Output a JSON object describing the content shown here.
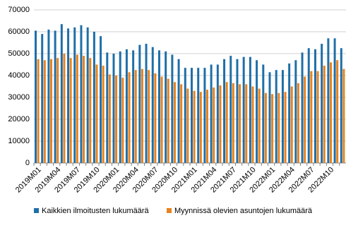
{
  "chart_data": {
    "type": "bar",
    "categories": [
      "2019M01",
      null,
      null,
      "2019M04",
      null,
      null,
      "2019M07",
      null,
      null,
      "2019M10",
      null,
      null,
      "2020M01",
      null,
      null,
      "2020M04",
      null,
      null,
      "2020M07",
      null,
      null,
      "2020M10",
      null,
      null,
      "2021M01",
      null,
      null,
      "2021M04",
      null,
      null,
      "2021M07",
      null,
      null,
      "2021M10",
      null,
      null,
      "2022M01",
      null,
      null,
      "2022M04",
      null,
      null,
      "2022M07",
      null,
      null,
      "2022M10",
      null,
      null
    ],
    "series": [
      {
        "name": "Kaikkien ilmoitusten lukumäärä",
        "color": "#1f6fa8",
        "values": [
          60500,
          59000,
          61000,
          60500,
          63500,
          61500,
          62000,
          63000,
          62000,
          60000,
          58000,
          50500,
          50000,
          51000,
          52000,
          51500,
          54000,
          54500,
          53000,
          51500,
          51000,
          49500,
          47500,
          43500,
          43500,
          43500,
          43500,
          45000,
          45000,
          47500,
          49000,
          47500,
          48500,
          48500,
          47000,
          45000,
          41500,
          42500,
          42500,
          45500,
          47000,
          50500,
          52500,
          52000,
          54500,
          57000,
          57000,
          52500
        ]
      },
      {
        "name": "Myynnissä olevien asuntojen lukumäärä",
        "color": "#e8821e",
        "values": [
          47500,
          47000,
          47500,
          48000,
          50000,
          48000,
          49500,
          49000,
          48000,
          45000,
          44500,
          40500,
          40000,
          39000,
          41500,
          42500,
          43000,
          42500,
          41000,
          39500,
          38500,
          37000,
          36000,
          34000,
          33000,
          32500,
          33500,
          34500,
          35500,
          37000,
          36500,
          36000,
          36000,
          35000,
          34000,
          32000,
          31500,
          32000,
          32500,
          35000,
          36500,
          39500,
          42000,
          42000,
          44500,
          46000,
          47000,
          43000
        ]
      }
    ],
    "ylim": [
      0,
      70000
    ],
    "yticks": [
      0,
      10000,
      20000,
      30000,
      40000,
      50000,
      60000,
      70000
    ],
    "grid": true,
    "legend": "bottom"
  }
}
